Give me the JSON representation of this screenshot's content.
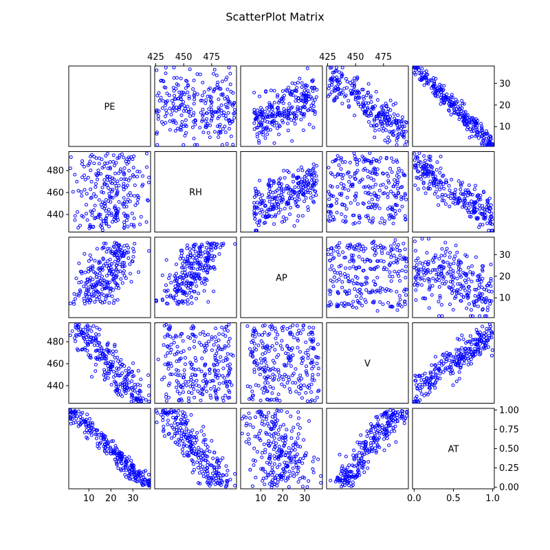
{
  "chart_data": {
    "type": "scatter",
    "title": "ScatterPlot Matrix",
    "variables": [
      "PE",
      "RH",
      "AP",
      "V",
      "AT"
    ],
    "marker_color": "#0000ff",
    "marker": "hollow-circle",
    "axis_ranges": {
      "PE": [
        1.6,
        37.3
      ],
      "RH": [
        425.5,
        495.8
      ],
      "AP": [
        1.6,
        37.3
      ],
      "V": [
        425.5,
        495.8
      ],
      "AT": [
        0,
        1
      ]
    },
    "ticks": {
      "PE": [
        10,
        20,
        30
      ],
      "RH": [
        440,
        460,
        480
      ],
      "AP": [
        10,
        20,
        30
      ],
      "V": [
        440,
        460,
        480
      ],
      "AT": [
        0.0,
        0.25,
        0.5,
        0.75,
        1.0
      ]
    },
    "top_axis_ticks": {
      "RH": [
        425,
        450,
        475
      ],
      "V": [
        425,
        450,
        475
      ]
    },
    "bottom_tick_labels": {
      "PE": [
        "10",
        "20",
        "30"
      ],
      "AP": [
        "10",
        "20",
        "30"
      ],
      "AT": [
        "0.0",
        "0.5",
        "1.0"
      ]
    },
    "bottom_tick_values": {
      "PE": [
        10,
        20,
        30
      ],
      "AP": [
        10,
        20,
        30
      ],
      "AT": [
        0.0,
        0.5,
        1.0
      ]
    },
    "right_tick_labels": {
      "PE": [
        "10",
        "20",
        "30"
      ],
      "AP": [
        "10",
        "20",
        "30"
      ],
      "AT": [
        "0.00",
        "0.25",
        "0.50",
        "0.75",
        "1.00"
      ]
    },
    "left_tick_labels": {
      "RH": [
        "440",
        "460",
        "480"
      ],
      "V": [
        "440",
        "460",
        "480"
      ]
    },
    "top_tick_labels": [
      "425",
      "450",
      "475"
    ],
    "panel_trends": [
      {
        "row": "PE",
        "col": "RH",
        "description": "dense cloud",
        "x_range": [
          427,
          495
        ],
        "y_range": [
          2,
          36
        ]
      },
      {
        "row": "PE",
        "col": "AP",
        "description": "positive spread",
        "x_range": [
          2,
          36
        ],
        "y_range": [
          2,
          36
        ]
      },
      {
        "row": "PE",
        "col": "V",
        "description": "negative",
        "x_range": [
          427,
          495
        ],
        "y_range": [
          2,
          32
        ]
      },
      {
        "row": "PE",
        "col": "AT",
        "description": "strong negative",
        "x_range": [
          0.02,
          0.98
        ],
        "y_range": [
          3,
          35
        ]
      },
      {
        "row": "RH",
        "col": "AP",
        "description": "positive spread",
        "x_range": [
          2,
          36
        ],
        "y_range": [
          427,
          495
        ]
      },
      {
        "row": "RH",
        "col": "V",
        "description": "banded",
        "x_range": [
          427,
          495
        ],
        "y_range": [
          427,
          495
        ]
      },
      {
        "row": "RH",
        "col": "AT",
        "description": "negative",
        "x_range": [
          0.02,
          0.98
        ],
        "y_range": [
          427,
          495
        ]
      },
      {
        "row": "AP",
        "col": "V",
        "description": "banded",
        "x_range": [
          427,
          495
        ],
        "y_range": [
          2,
          36
        ]
      },
      {
        "row": "AP",
        "col": "AT",
        "description": "weak negative",
        "x_range": [
          0.02,
          0.98
        ],
        "y_range": [
          2,
          36
        ]
      },
      {
        "row": "V",
        "col": "AT",
        "description": "positive",
        "x_range": [
          0.02,
          0.98
        ],
        "y_range": [
          427,
          495
        ]
      }
    ]
  }
}
